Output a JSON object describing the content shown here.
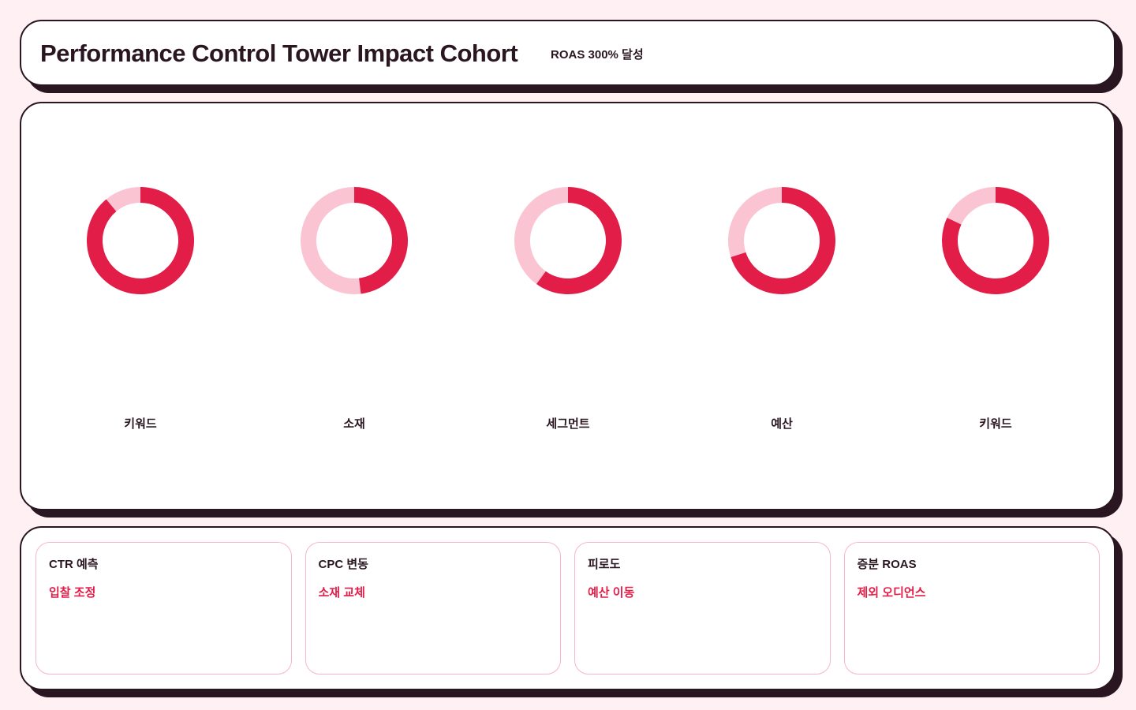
{
  "header": {
    "title": "Performance Control Tower Impact Cohort",
    "badge": "ROAS 300% 달성"
  },
  "colors": {
    "accent": "#e11d48",
    "accent_light": "#fbc4d3",
    "ink": "#2a1620",
    "background": "#fff0f3"
  },
  "chart_data": {
    "type": "pie",
    "title": "",
    "charts": [
      {
        "label": "키워드",
        "value": 0.89
      },
      {
        "label": "소재",
        "value": 0.48
      },
      {
        "label": "세그먼트",
        "value": 0.6
      },
      {
        "label": "예산",
        "value": 0.7
      },
      {
        "label": "키워드",
        "value": 0.82
      }
    ]
  },
  "cards": [
    {
      "title": "CTR 예측",
      "action": "입찰 조정"
    },
    {
      "title": "CPC 변동",
      "action": "소재 교체"
    },
    {
      "title": "피로도",
      "action": "예산 이동"
    },
    {
      "title": "증분 ROAS",
      "action": "제외 오디언스"
    }
  ]
}
